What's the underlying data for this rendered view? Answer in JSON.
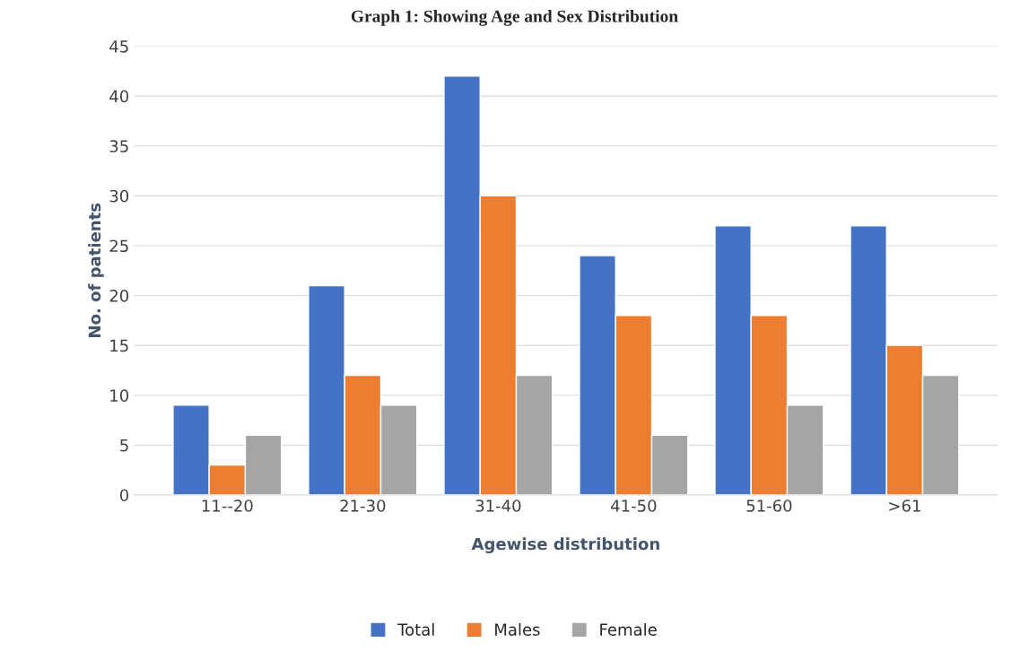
{
  "chart_data": {
    "type": "bar",
    "title": "Graph 1: Showing Age and Sex Distribution",
    "categories": [
      "11--20",
      "21-30",
      "31-40",
      "41-50",
      "51-60",
      ">61"
    ],
    "series": [
      {
        "name": "Total",
        "color": "#4472c4",
        "values": [
          9,
          21,
          42,
          24,
          27,
          27
        ]
      },
      {
        "name": "Males",
        "color": "#ed7d31",
        "values": [
          3,
          12,
          30,
          18,
          18,
          15
        ]
      },
      {
        "name": "Female",
        "color": "#a5a5a5",
        "values": [
          6,
          9,
          12,
          6,
          9,
          12
        ]
      }
    ],
    "xlabel": "Agewise distribution",
    "ylabel": "No. of patients",
    "ylim": [
      0,
      45
    ],
    "yticks": [
      0,
      5,
      10,
      15,
      20,
      25,
      30,
      35,
      40,
      45
    ],
    "grid": "y",
    "legend": "bottom"
  }
}
